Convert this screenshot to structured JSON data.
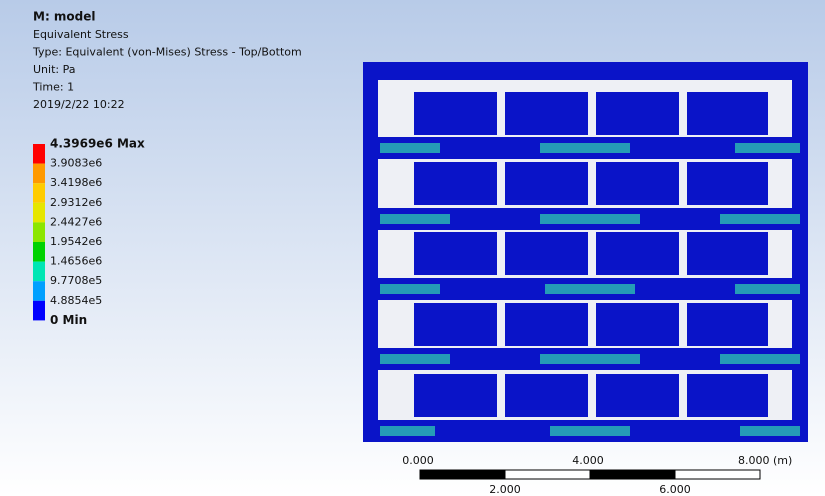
{
  "header": {
    "title": "M: model",
    "lines": [
      "Equivalent Stress",
      "Type: Equivalent (von-Mises) Stress - Top/Bottom",
      "Unit: Pa",
      "Time: 1",
      "2019/2/22 10:22"
    ]
  },
  "legend": {
    "labels": [
      "4.3969e6 Max",
      "3.9083e6",
      "3.4198e6",
      "2.9312e6",
      "2.4427e6",
      "1.9542e6",
      "1.4656e6",
      "9.7708e5",
      "4.8854e5",
      "0 Min"
    ],
    "colors": [
      "#ff0000",
      "#ff9900",
      "#ffcc00",
      "#e6e600",
      "#8ce600",
      "#00d200",
      "#00e6b4",
      "#00a0ff",
      "#0000ff"
    ]
  },
  "scale": {
    "top_labels": [
      "0.000",
      "4.000",
      "8.000 (m)"
    ],
    "bottom_labels": [
      "2.000",
      "6.000"
    ]
  }
}
